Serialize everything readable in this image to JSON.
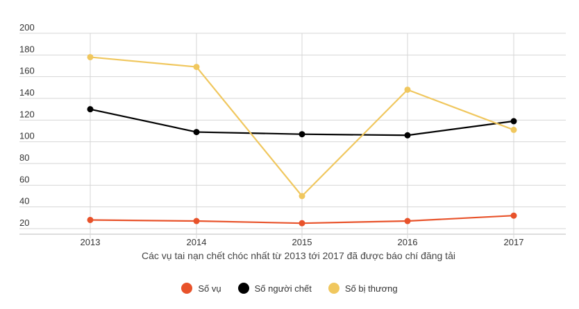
{
  "chart_data": {
    "type": "line",
    "title": "",
    "xlabel": "Các vụ tai nạn chết chóc nhất từ 2013 tới 2017 đã được báo chí đăng tải",
    "ylabel": "",
    "categories": [
      "2013",
      "2014",
      "2015",
      "2016",
      "2017"
    ],
    "y_ticks": [
      20,
      40,
      60,
      80,
      100,
      120,
      140,
      160,
      180,
      200
    ],
    "ylim": [
      20,
      200
    ],
    "grid": true,
    "legend_position": "bottom",
    "series": [
      {
        "name": "Số vụ",
        "color": "#e8522a",
        "values": [
          28,
          27,
          25,
          27,
          32
        ]
      },
      {
        "name": "Số người chết",
        "color": "#000000",
        "values": [
          130,
          109,
          107,
          106,
          119
        ]
      },
      {
        "name": "Số bị thương",
        "color": "#f0c75e",
        "values": [
          178,
          169,
          50,
          148,
          111
        ]
      }
    ]
  }
}
